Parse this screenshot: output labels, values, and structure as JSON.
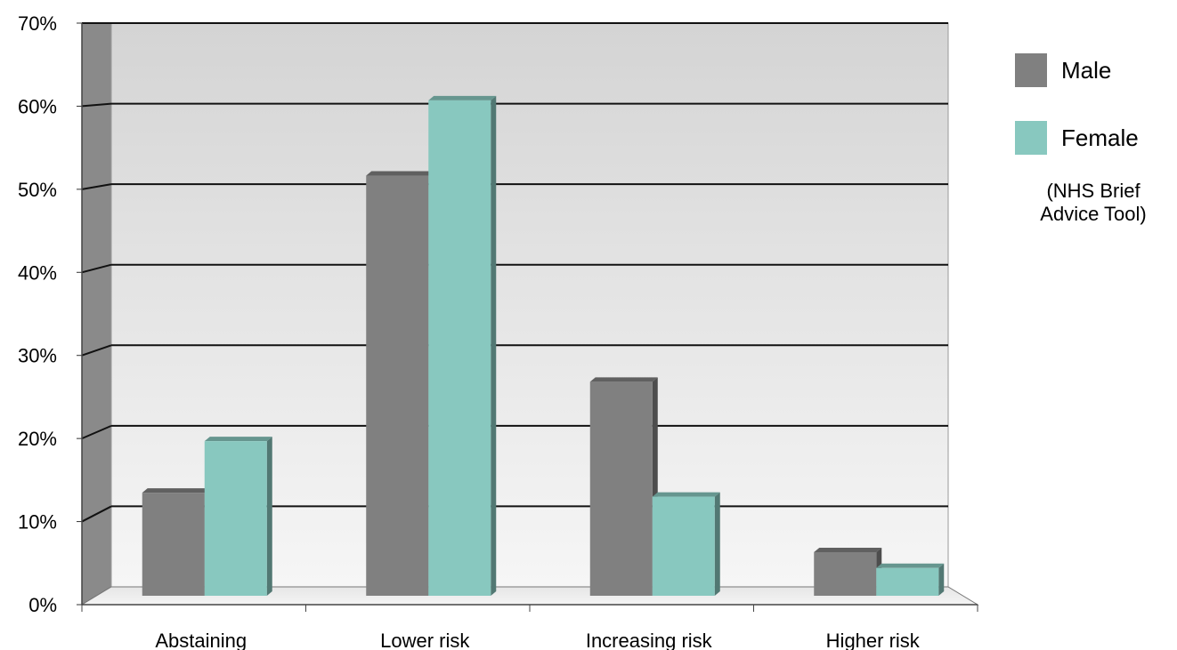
{
  "chart_data": {
    "type": "bar",
    "categories": [
      "Abstaining",
      "Lower risk",
      "Increasing risk",
      "Higher risk"
    ],
    "series": [
      {
        "name": "Male",
        "values": [
          13,
          53,
          27,
          5.5
        ],
        "color": "#808080"
      },
      {
        "name": "Female",
        "values": [
          19.5,
          62.5,
          12.5,
          3.5
        ],
        "color": "#88c8bf"
      }
    ],
    "y_ticks": [
      "0%",
      "10%",
      "20%",
      "30%",
      "40%",
      "50%",
      "60%",
      "70%"
    ],
    "ylim": [
      0,
      70
    ],
    "y_unit": "%",
    "grid": true,
    "legend_position": "right",
    "style": "3d-bar"
  },
  "legend": {
    "male_label": "Male",
    "female_label": "Female",
    "note_line1": "(NHS Brief",
    "note_line2": "Advice Tool)"
  }
}
